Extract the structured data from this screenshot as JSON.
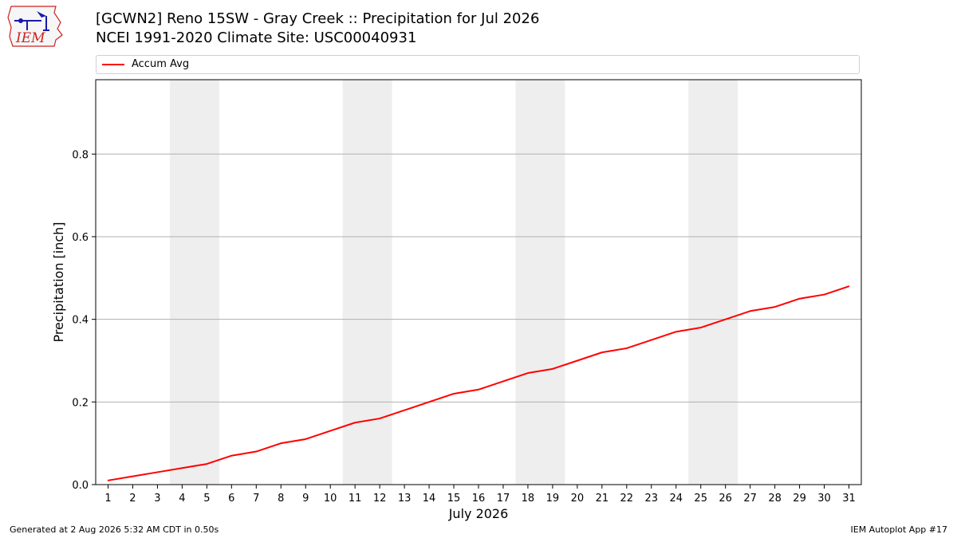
{
  "header": {
    "title": "[GCWN2] Reno 15SW - Gray Creek :: Precipitation for Jul 2026",
    "subtitle": "NCEI 1991-2020 Climate Site: USC00040931"
  },
  "logo": {
    "text": "IEM",
    "icon": "iem-logo-icon"
  },
  "footer": {
    "generated": "Generated at 2 Aug 2026 5:32 AM CDT in 0.50s",
    "app": "IEM Autoplot App #17"
  },
  "colors": {
    "line": "#ff0000",
    "weekend_band": "#eeeeee",
    "grid": "#b0b0b0"
  },
  "chart_data": {
    "type": "line",
    "xlabel": "July 2026",
    "ylabel": "Precipitation [inch]",
    "x": [
      1,
      2,
      3,
      4,
      5,
      6,
      7,
      8,
      9,
      10,
      11,
      12,
      13,
      14,
      15,
      16,
      17,
      18,
      19,
      20,
      21,
      22,
      23,
      24,
      25,
      26,
      27,
      28,
      29,
      30,
      31
    ],
    "xlim": [
      0.5,
      31.5
    ],
    "ylim": [
      0,
      0.98
    ],
    "yticks": [
      0.0,
      0.2,
      0.4,
      0.6,
      0.8
    ],
    "ytick_labels": [
      "0.0",
      "0.2",
      "0.4",
      "0.6",
      "0.8"
    ],
    "grid": "horizontal",
    "legend_position": "top",
    "weekend_bands": [
      [
        4,
        5
      ],
      [
        11,
        12
      ],
      [
        18,
        19
      ],
      [
        25,
        26
      ]
    ],
    "series": [
      {
        "name": "Accum Avg",
        "color": "#ff0000",
        "values": [
          0.01,
          0.02,
          0.03,
          0.04,
          0.05,
          0.07,
          0.08,
          0.1,
          0.11,
          0.13,
          0.15,
          0.16,
          0.18,
          0.2,
          0.22,
          0.23,
          0.25,
          0.27,
          0.28,
          0.3,
          0.32,
          0.33,
          0.35,
          0.37,
          0.38,
          0.4,
          0.42,
          0.43,
          0.45,
          0.46,
          0.48
        ]
      }
    ]
  }
}
